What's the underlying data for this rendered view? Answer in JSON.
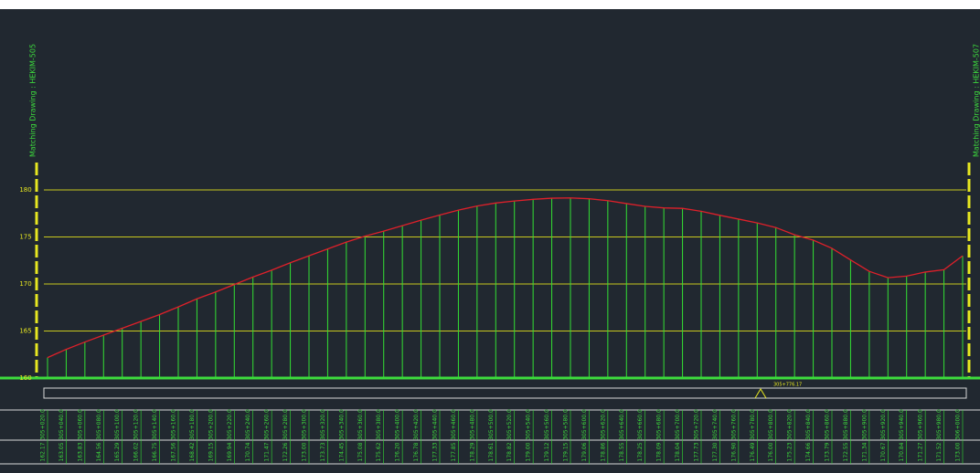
{
  "chart_data": {
    "type": "line",
    "left_note": "Matching Drawing : HEKIM-505",
    "right_note": "Matching Drawing : HEKIM-507",
    "annotation": "305+776.17",
    "categories": [
      "305+020.0",
      "305+040.0",
      "305+060.0",
      "305+080.0",
      "305+100.0",
      "305+120.0",
      "305+140.0",
      "305+160.0",
      "305+180.0",
      "305+200.0",
      "305+220.0",
      "305+240.0",
      "305+260.0",
      "305+280.0",
      "305+300.0",
      "305+320.0",
      "305+340.0",
      "305+360.0",
      "305+380.0",
      "305+400.0",
      "305+420.0",
      "305+440.0",
      "305+460.0",
      "305+480.0",
      "305+500.0",
      "305+520.0",
      "305+540.0",
      "305+560.0",
      "305+580.0",
      "305+600.0",
      "305+620.0",
      "305+640.0",
      "305+660.0",
      "305+680.0",
      "305+700.0",
      "305+720.0",
      "305+740.0",
      "305+760.0",
      "305+780.0",
      "305+800.0",
      "305+820.0",
      "305+840.0",
      "305+860.0",
      "305+880.0",
      "305+900.0",
      "305+920.0",
      "305+940.0",
      "305+960.0",
      "305+980.0",
      "306+000.0"
    ],
    "values": [
      162.17,
      163.05,
      163.83,
      164.56,
      165.29,
      166.02,
      166.75,
      167.56,
      168.42,
      169.15,
      169.94,
      170.74,
      171.47,
      172.26,
      173.0,
      173.73,
      174.45,
      175.08,
      175.62,
      176.2,
      176.78,
      177.33,
      177.85,
      178.29,
      178.61,
      178.82,
      179.0,
      179.12,
      179.15,
      179.06,
      178.86,
      178.55,
      178.25,
      178.09,
      178.04,
      177.73,
      177.3,
      176.9,
      176.49,
      176.0,
      175.23,
      174.66,
      173.79,
      172.55,
      171.34,
      170.67,
      170.84,
      171.27,
      171.52,
      173.0
    ],
    "value_labels": [
      "162.17",
      "163.05",
      "163.83",
      "164.56",
      "165.29",
      "166.02",
      "166.75",
      "167.56",
      "168.42",
      "169.15",
      "169.94",
      "170.74",
      "171.47",
      "172.26",
      "173.00",
      "173.73",
      "174.45",
      "175.08",
      "175.62",
      "176.20",
      "176.78",
      "177.33",
      "177.85",
      "178.29",
      "178.61",
      "178.82",
      "179.00",
      "179.12",
      "179.15",
      "179.06",
      "178.86",
      "178.55",
      "178.25",
      "178.09",
      "178.04",
      "177.73",
      "177.30",
      "176.90",
      "176.49",
      "176.00",
      "175.23",
      "174.66",
      "173.79",
      "172.55",
      "171.34",
      "170.67",
      "170.84",
      "171.27",
      "171.52",
      "173.00"
    ],
    "line_color": "#e0202a",
    "stem_color": "#33e033",
    "grid_color": "#c8c81e",
    "ylim": [
      160,
      180
    ],
    "yticks": [
      160,
      165,
      170,
      175,
      180
    ],
    "grid": true
  }
}
